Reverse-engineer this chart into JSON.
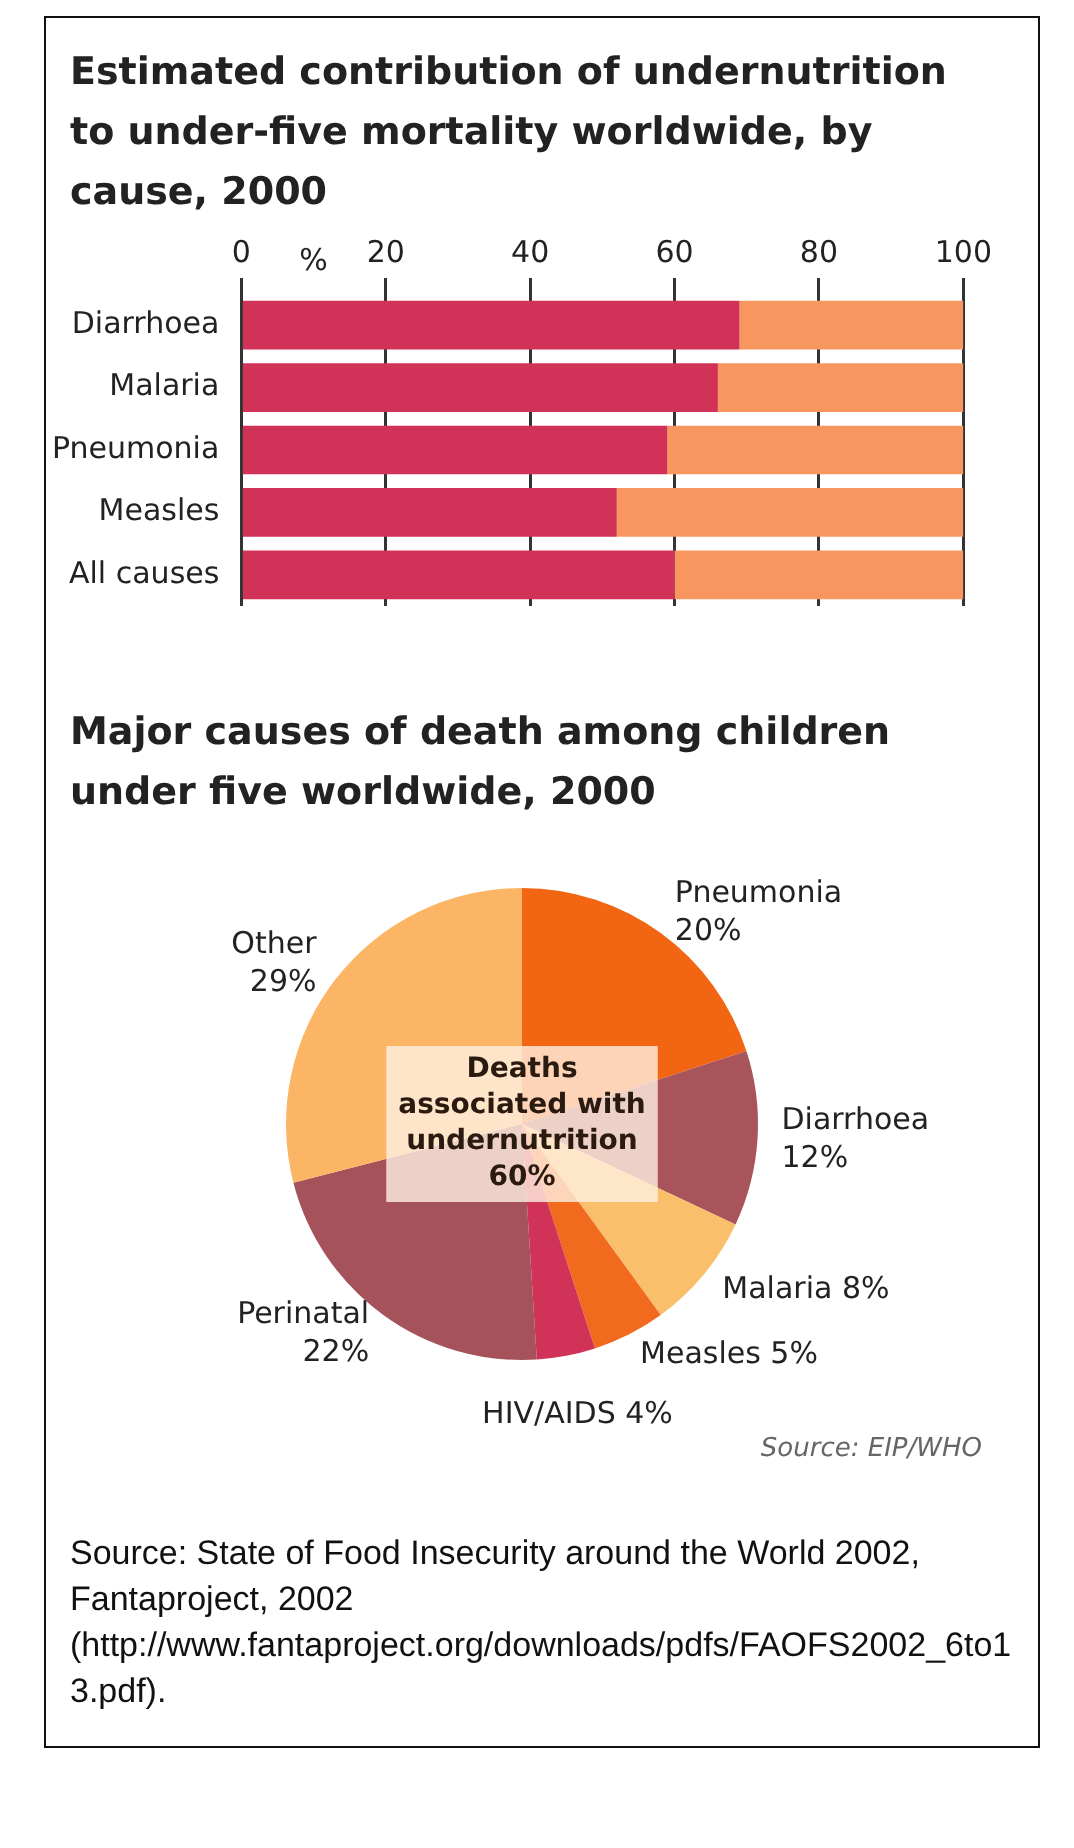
{
  "chart_data": [
    {
      "type": "bar",
      "orientation": "horizontal",
      "stacked": true,
      "title": "Estimated contribution of undernutrition to under-five mortality worldwide, by cause, 2000",
      "xlabel": "%",
      "categories": [
        "Diarrhoea",
        "Malaria",
        "Pneumonia",
        "Measles",
        "All causes"
      ],
      "series": [
        {
          "color": "#d13257",
          "values": [
            69,
            66,
            59,
            52,
            60
          ]
        },
        {
          "color": "#f7975f",
          "values": [
            31,
            34,
            41,
            48,
            40
          ]
        }
      ],
      "xlim": [
        0,
        100
      ],
      "xticks": [
        0,
        20,
        40,
        60,
        80,
        100
      ],
      "grid": "x",
      "legend": false
    },
    {
      "type": "pie",
      "title": "Major causes of death among children under five worldwide, 2000",
      "categories": [
        "Pneumonia",
        "Diarrhoea",
        "Malaria",
        "Measles",
        "HIV/AIDS",
        "Perinatal",
        "Other"
      ],
      "values": [
        20,
        12,
        8,
        5,
        4,
        22,
        29
      ],
      "colors": [
        "#f26513",
        "#a8545a",
        "#f9bf6a",
        "#f26a1e",
        "#d13257",
        "#a5525a",
        "#fbb565"
      ],
      "value_labels": [
        "20%",
        "12%",
        "8%",
        "5%",
        "4%",
        "22%",
        "29%"
      ],
      "annotations": [
        "Deaths associated with undernutrition 60%",
        "Source: EIP/WHO",
        "Source: State of Food Insecurity around the World 2002, Fantaproject, 2002 (http://www.fantaproject.org/downloads/pdfs/FAOFS2002_6to13.pdf)."
      ]
    }
  ]
}
